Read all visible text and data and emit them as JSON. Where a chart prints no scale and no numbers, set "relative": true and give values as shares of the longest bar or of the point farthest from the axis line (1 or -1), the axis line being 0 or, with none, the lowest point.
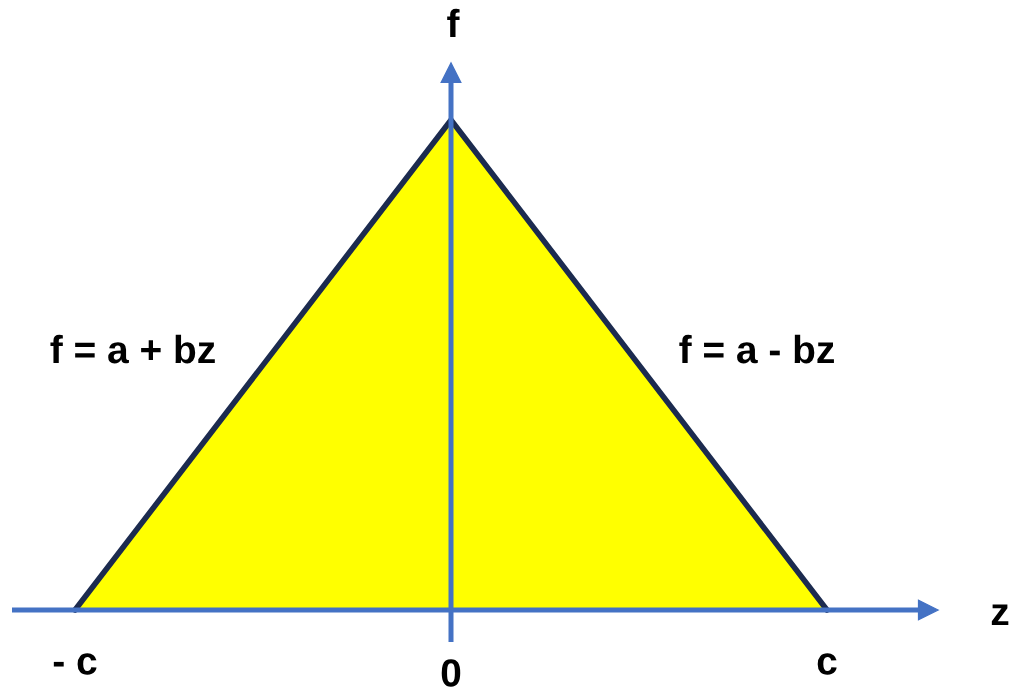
{
  "chart_data": {
    "type": "area",
    "xlabel": "z",
    "ylabel": "f",
    "categories": [
      "- c",
      "0",
      "c"
    ],
    "relative": true,
    "series": [
      {
        "color": "#ffff00",
        "values": [
          0,
          1,
          0
        ]
      }
    ],
    "ref_lines": [
      {
        "axis": "x",
        "value": "0",
        "color": "#4472c4"
      }
    ],
    "annotations": [
      "f = a + bz",
      "f = a - bz"
    ]
  }
}
